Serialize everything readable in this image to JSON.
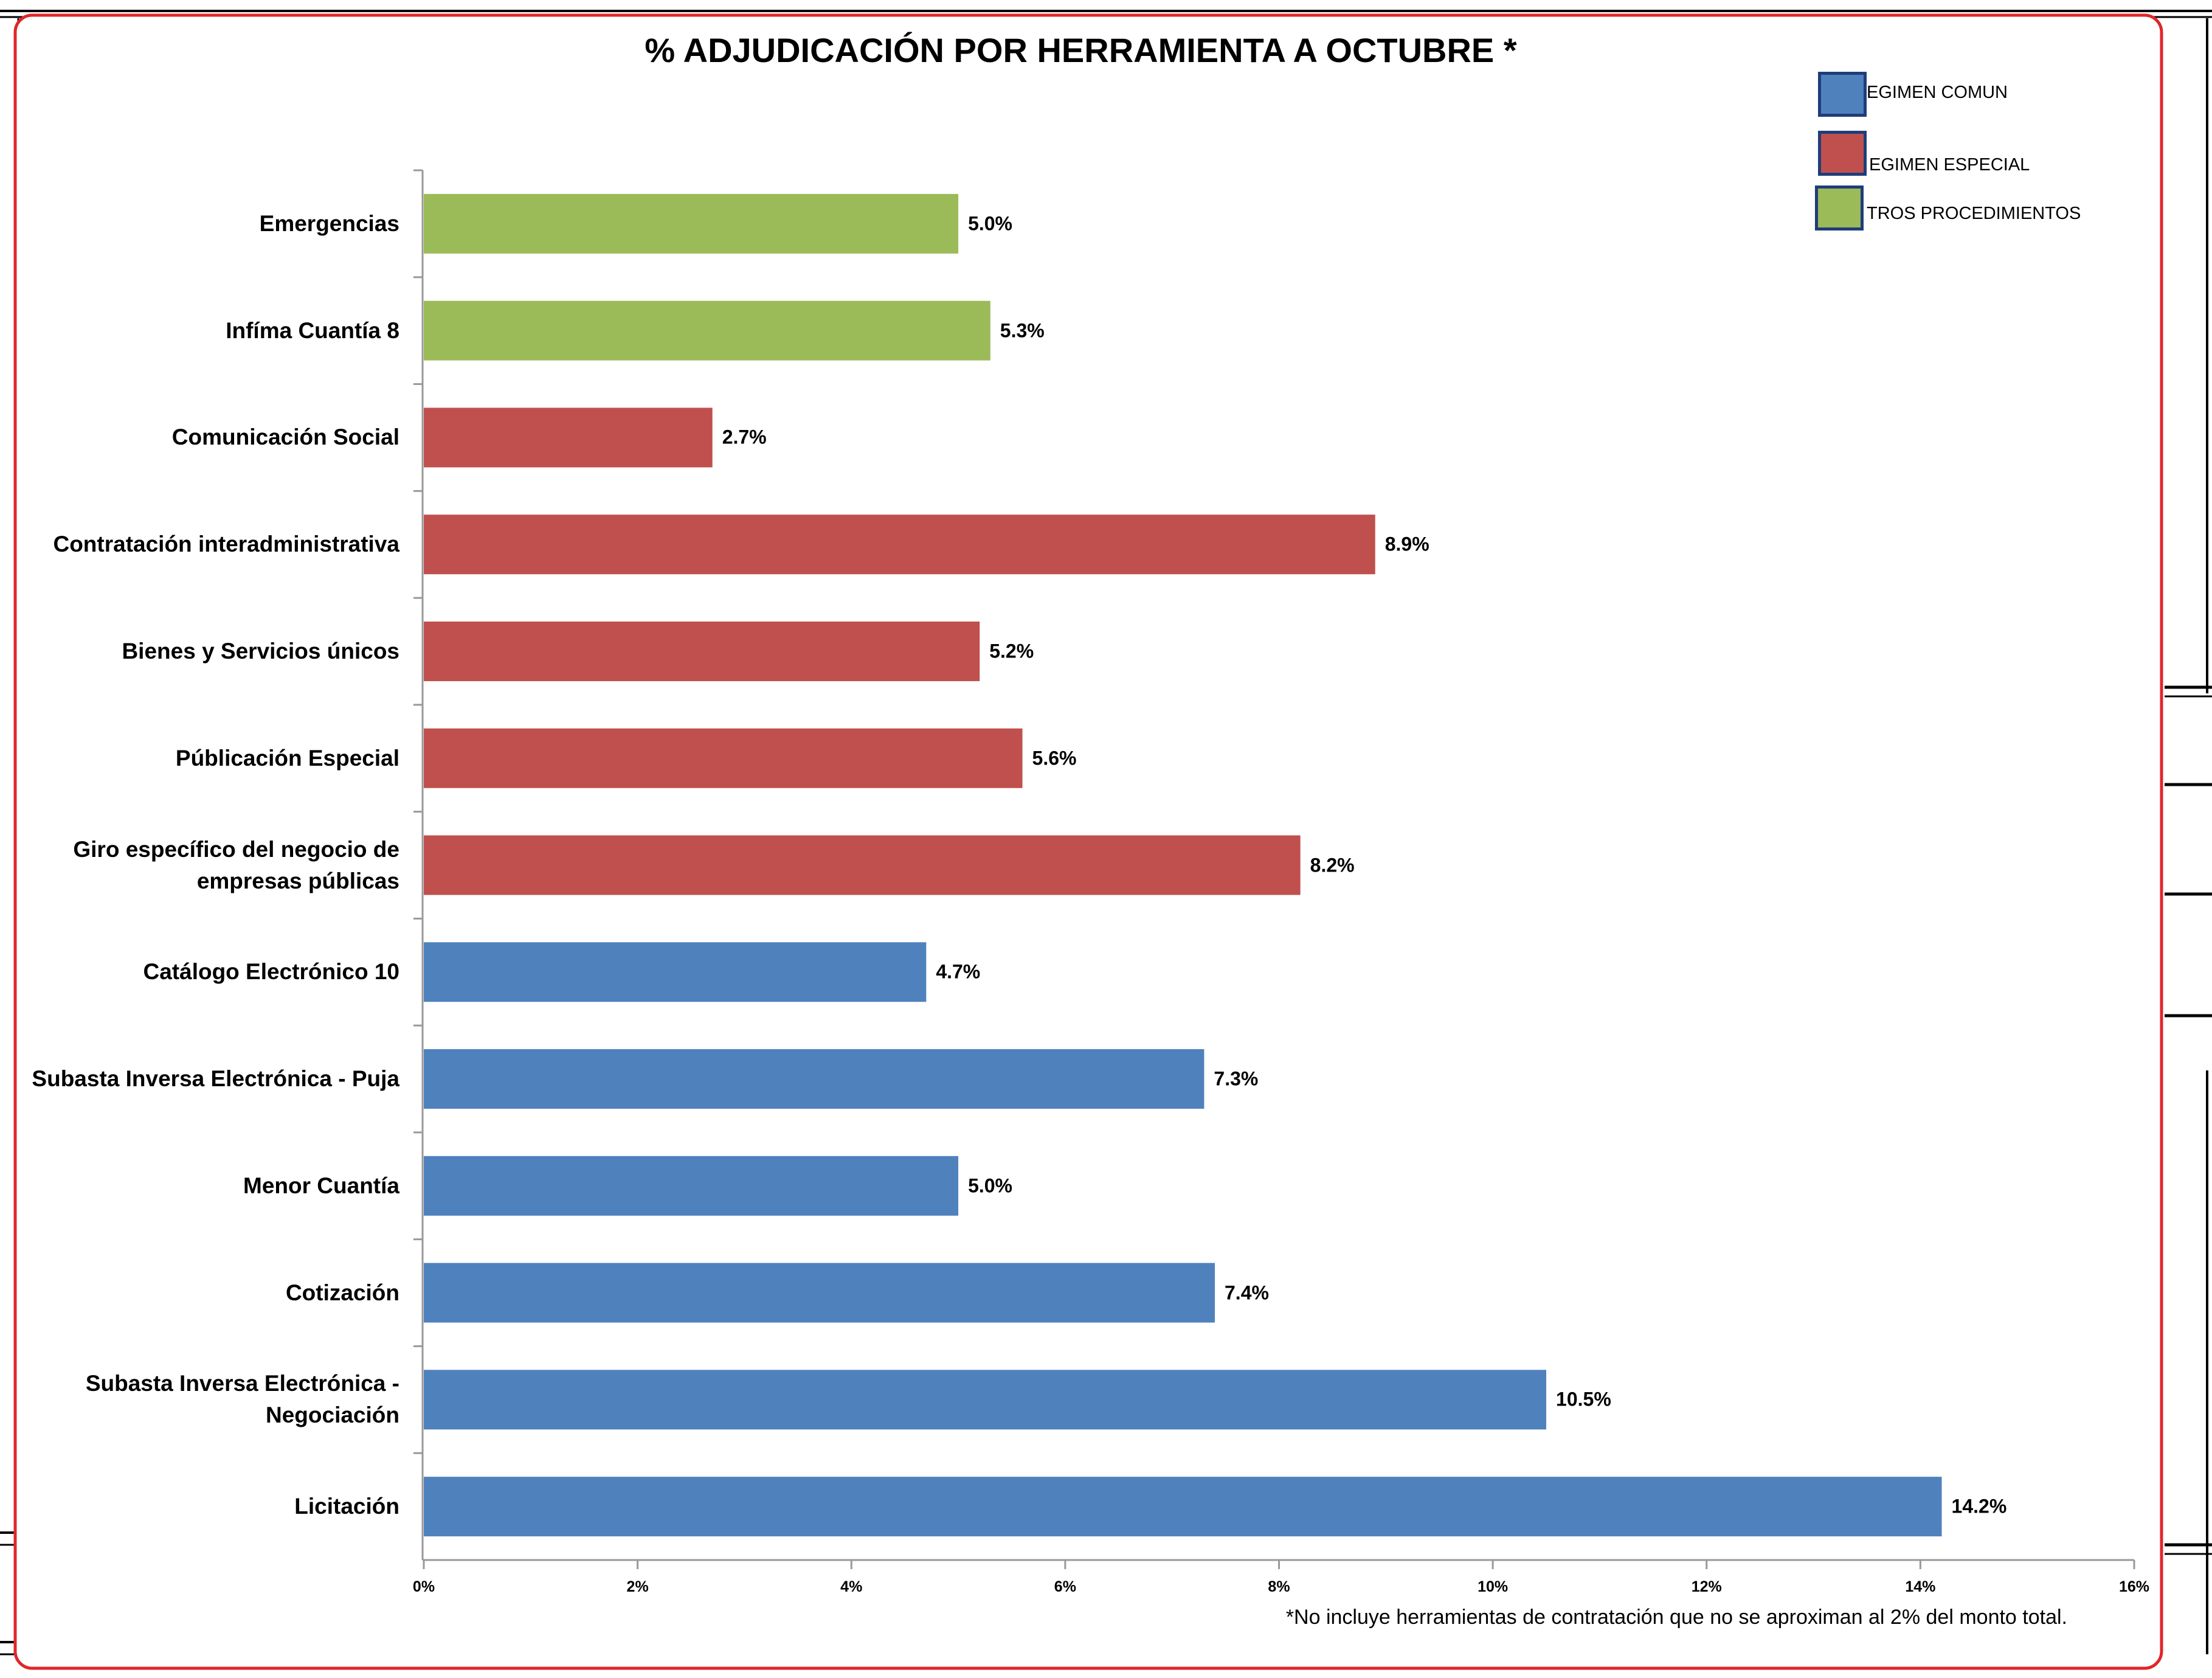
{
  "chart_data": {
    "type": "bar",
    "orientation": "horizontal",
    "title": "% ADJUDICACIÓN POR HERRAMIENTA A OCTUBRE *",
    "xlabel": "",
    "ylabel": "",
    "xlim": [
      0,
      16
    ],
    "x_ticks": [
      "0%",
      "2%",
      "4%",
      "6%",
      "8%",
      "10%",
      "12%",
      "14%",
      "16%"
    ],
    "grid": false,
    "legend_position": "top-right",
    "legend": [
      {
        "label": "EGIMEN COMUN",
        "color": "#4f81bd"
      },
      {
        "label": "EGIMEN ESPECIAL",
        "color": "#c0504d"
      },
      {
        "label": "TROS PROCEDIMIENTOS",
        "color": "#9bbb59"
      }
    ],
    "categories": [
      {
        "label": "Emergencias",
        "value": 5.0,
        "value_label": "5.0%",
        "group": 2
      },
      {
        "label": "Infíma Cuantía 8",
        "value": 5.3,
        "value_label": "5.3%",
        "group": 2
      },
      {
        "label": "Comunicación Social",
        "value": 2.7,
        "value_label": "2.7%",
        "group": 1
      },
      {
        "label": "Contratación interadministrativa",
        "value": 8.9,
        "value_label": "8.9%",
        "group": 1
      },
      {
        "label": "Bienes y Servicios únicos",
        "value": 5.2,
        "value_label": "5.2%",
        "group": 1
      },
      {
        "label": "Públicación Especial",
        "value": 5.6,
        "value_label": "5.6%",
        "group": 1
      },
      {
        "label": "Giro específico del negocio de\nempresas públicas",
        "value": 8.2,
        "value_label": "8.2%",
        "group": 1
      },
      {
        "label": "Catálogo Electrónico 10",
        "value": 4.7,
        "value_label": "4.7%",
        "group": 0
      },
      {
        "label": "Subasta Inversa Electrónica - Puja",
        "value": 7.3,
        "value_label": "7.3%",
        "group": 0
      },
      {
        "label": "Menor Cuantía",
        "value": 5.0,
        "value_label": "5.0%",
        "group": 0
      },
      {
        "label": "Cotización",
        "value": 7.4,
        "value_label": "7.4%",
        "group": 0
      },
      {
        "label": "Subasta Inversa Electrónica -\nNegociación",
        "value": 10.5,
        "value_label": "10.5%",
        "group": 0
      },
      {
        "label": "Licitación",
        "value": 14.2,
        "value_label": "14.2%",
        "group": 0
      }
    ],
    "footnote": "*No incluye herramientas de contratación que no se aproximan al 2% del monto total."
  }
}
